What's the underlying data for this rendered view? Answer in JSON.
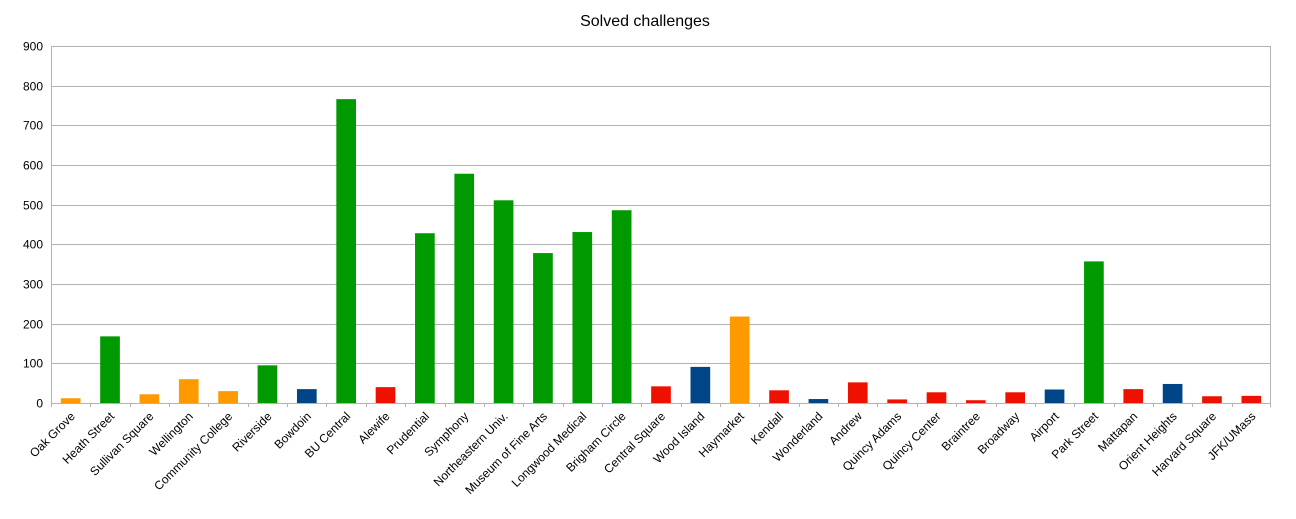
{
  "chart_data": {
    "type": "bar",
    "title": "Solved challenges",
    "xlabel": "",
    "ylabel": "",
    "ylim": [
      0,
      900
    ],
    "yticks": [
      0,
      100,
      200,
      300,
      400,
      500,
      600,
      700,
      800,
      900
    ],
    "grid": true,
    "legend": "none",
    "colors": {
      "green": "#009900",
      "orange": "#ff9900",
      "blue": "#004586",
      "red": "#ee1100",
      "grid": "#b3b3b3"
    },
    "categories": [
      "Oak Grove",
      "Heath Street",
      "Sullivan Square",
      "Wellington",
      "Community College",
      "Riverside",
      "Bowdoin",
      "BU Central",
      "Alewife",
      "Prudential",
      "Symphony",
      "Northeastern Univ.",
      "Museum of Fine Arts",
      "Longwood Medical",
      "Brigham Circle",
      "Central Square",
      "Wood Island",
      "Haymarket",
      "Kendall",
      "Wonderland",
      "Andrew",
      "Quincy Adams",
      "Quincy Center",
      "Braintree",
      "Broadway",
      "Airport",
      "Park Street",
      "Mattapan",
      "Orient Heights",
      "Harvard Square",
      "JFK/UMass"
    ],
    "values": [
      12,
      168,
      22,
      60,
      30,
      95,
      35,
      766,
      40,
      428,
      578,
      511,
      378,
      431,
      486,
      42,
      91,
      218,
      32,
      10,
      52,
      9,
      27,
      7,
      27,
      34,
      357,
      35,
      48,
      17,
      18
    ],
    "bar_colors": [
      "orange",
      "green",
      "orange",
      "orange",
      "orange",
      "green",
      "blue",
      "green",
      "red",
      "green",
      "green",
      "green",
      "green",
      "green",
      "green",
      "red",
      "blue",
      "orange",
      "red",
      "blue",
      "red",
      "red",
      "red",
      "red",
      "red",
      "blue",
      "green",
      "red",
      "blue",
      "red",
      "red"
    ]
  }
}
